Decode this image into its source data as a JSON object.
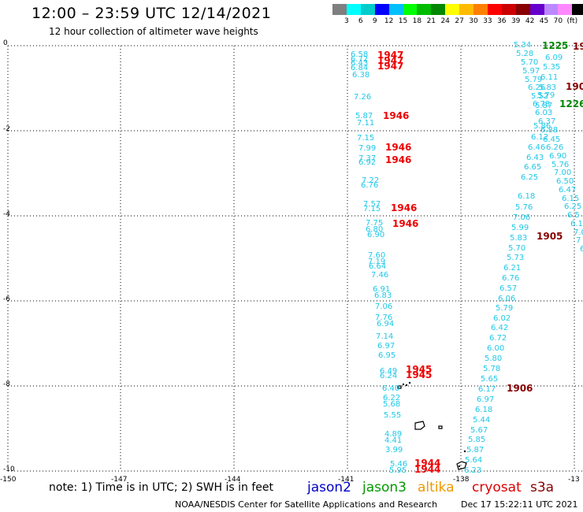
{
  "header": {
    "title": "12:00 – 23:59 UTC 12/14/2021",
    "subtitle": "12 hour collection of altimeter wave heights"
  },
  "legend": {
    "colors": [
      "#7f7f7f",
      "#00ffff",
      "#00cccc",
      "#0000ff",
      "#00bfff",
      "#00ff00",
      "#00bb00",
      "#008800",
      "#ffff00",
      "#ffbb00",
      "#ff7f00",
      "#ff0000",
      "#cc0000",
      "#880000",
      "#6600cc",
      "#bb88ff",
      "#ff88ff",
      "#000000"
    ],
    "labels": [
      "3",
      "6",
      "9",
      "12",
      "15",
      "18",
      "21",
      "24",
      "27",
      "30",
      "33",
      "36",
      "39",
      "42",
      "45",
      "70",
      "(ft)"
    ]
  },
  "axes": {
    "y_ticks": [
      "0",
      "-2",
      "-4",
      "-6",
      "-8",
      "-10"
    ],
    "x_ticks": [
      "-150",
      "-147",
      "-144",
      "-141",
      "-138",
      "-13"
    ]
  },
  "map": {
    "colors": {
      "swh": "#20c8e8",
      "time_cryosat": "#ee0000",
      "time_jason3": "#008800",
      "time_dark": "#880000"
    },
    "track_west_values": [
      {
        "v": "6.58"
      },
      {
        "v": "6.72"
      },
      {
        "v": "6.43"
      },
      {
        "v": "6.84"
      },
      {
        "v": "6.38"
      },
      {
        "v": "7.26"
      },
      {
        "v": "5.87"
      },
      {
        "v": "7.11"
      },
      {
        "v": "7.15"
      },
      {
        "v": "7.99"
      },
      {
        "v": "7.37"
      },
      {
        "v": "6.92"
      },
      {
        "v": "7.22"
      },
      {
        "v": "6.76"
      },
      {
        "v": "7.57"
      },
      {
        "v": "7.15"
      },
      {
        "v": "7.75"
      },
      {
        "v": "6.80"
      },
      {
        "v": "6.90"
      },
      {
        "v": "7.60"
      },
      {
        "v": "7.19"
      },
      {
        "v": "6.64"
      },
      {
        "v": "7.46"
      },
      {
        "v": "6.91"
      },
      {
        "v": "6.83"
      },
      {
        "v": "7.06"
      },
      {
        "v": "7.76"
      },
      {
        "v": "6.94"
      },
      {
        "v": "7.14"
      },
      {
        "v": "6.97"
      },
      {
        "v": "6.95"
      },
      {
        "v": "6.49"
      },
      {
        "v": "6.24"
      },
      {
        "v": "6.40"
      },
      {
        "v": "6.22"
      },
      {
        "v": "5.68"
      },
      {
        "v": "5.55"
      },
      {
        "v": "4.89"
      },
      {
        "v": "4.41"
      },
      {
        "v": "3.99"
      },
      {
        "v": "5.46"
      },
      {
        "v": "5.95"
      }
    ],
    "track_mid_values": [
      {
        "v": "5.34"
      },
      {
        "v": "5.28"
      },
      {
        "v": "5.70"
      },
      {
        "v": "5.97"
      },
      {
        "v": "5.79"
      },
      {
        "v": "6.26"
      },
      {
        "v": "5.52"
      },
      {
        "v": "6.78"
      },
      {
        "v": "6.03"
      },
      {
        "v": "5.86"
      },
      {
        "v": "6.12"
      },
      {
        "v": "6.46"
      },
      {
        "v": "6.43"
      },
      {
        "v": "6.65"
      },
      {
        "v": "6.25"
      },
      {
        "v": "6.18"
      },
      {
        "v": "5.76"
      },
      {
        "v": "7.06"
      },
      {
        "v": "5.99"
      },
      {
        "v": "5.83"
      },
      {
        "v": "5.70"
      },
      {
        "v": "5.73"
      },
      {
        "v": "6.21"
      },
      {
        "v": "6.76"
      },
      {
        "v": "6.57"
      },
      {
        "v": "6.06"
      },
      {
        "v": "5.79"
      },
      {
        "v": "6.02"
      },
      {
        "v": "6.42"
      },
      {
        "v": "6.72"
      },
      {
        "v": "6.00"
      },
      {
        "v": "5.80"
      },
      {
        "v": "5.78"
      },
      {
        "v": "5.65"
      },
      {
        "v": "6.17"
      },
      {
        "v": "6.97"
      },
      {
        "v": "6.18"
      },
      {
        "v": "5.44"
      },
      {
        "v": "5.67"
      },
      {
        "v": "5.85"
      },
      {
        "v": "5.87"
      },
      {
        "v": "5.64"
      },
      {
        "v": "6.23"
      }
    ],
    "track_east_values": [
      {
        "v": "6.09"
      },
      {
        "v": "5.35"
      },
      {
        "v": "6.11"
      },
      {
        "v": "5.83"
      },
      {
        "v": "5.79"
      },
      {
        "v": "5.87"
      },
      {
        "v": "6.37"
      },
      {
        "v": "6.88"
      },
      {
        "v": "6.45"
      },
      {
        "v": "6.26"
      },
      {
        "v": "6.90"
      },
      {
        "v": "5.76"
      },
      {
        "v": "7.00"
      },
      {
        "v": "6.50"
      },
      {
        "v": "6.47"
      },
      {
        "v": "6.15"
      },
      {
        "v": "6.25"
      },
      {
        "v": "6.5"
      },
      {
        "v": "6.1"
      },
      {
        "v": "7.0"
      },
      {
        "v": "7"
      },
      {
        "v": "6"
      }
    ],
    "time_labels": [
      {
        "t": "1947",
        "c": "time_cryosat"
      },
      {
        "t": "1947",
        "c": "time_cryosat"
      },
      {
        "t": "1947",
        "c": "time_cryosat"
      },
      {
        "t": "1946",
        "c": "time_cryosat"
      },
      {
        "t": "1946",
        "c": "time_cryosat"
      },
      {
        "t": "1946",
        "c": "time_cryosat"
      },
      {
        "t": "1946",
        "c": "time_cryosat"
      },
      {
        "t": "1946",
        "c": "time_cryosat"
      },
      {
        "t": "1945",
        "c": "time_cryosat"
      },
      {
        "t": "1945",
        "c": "time_cryosat"
      },
      {
        "t": "1944",
        "c": "time_cryosat"
      },
      {
        "t": "1944",
        "c": "time_cryosat"
      },
      {
        "t": "1225",
        "c": "time_jason3"
      },
      {
        "t": "1226",
        "c": "time_jason3"
      },
      {
        "t": "19",
        "c": "time_dark"
      },
      {
        "t": "190",
        "c": "time_dark"
      },
      {
        "t": "1905",
        "c": "time_dark"
      },
      {
        "t": "1906",
        "c": "time_dark"
      }
    ]
  },
  "footer": {
    "note": "note: 1) Time is in UTC; 2) SWH is in feet",
    "satellites": [
      {
        "name": "jason2",
        "color": "#0000cc"
      },
      {
        "name": "jason3",
        "color": "#009900"
      },
      {
        "name": "altika",
        "color": "#ee9900"
      },
      {
        "name": "cryosat",
        "color": "#dd0000"
      },
      {
        "name": "s3a",
        "color": "#880000"
      }
    ],
    "credit": "NOAA/NESDIS Center for Satellite Applications and Research",
    "timestamp": "Dec 17 15:22:11 UTC 2021"
  }
}
